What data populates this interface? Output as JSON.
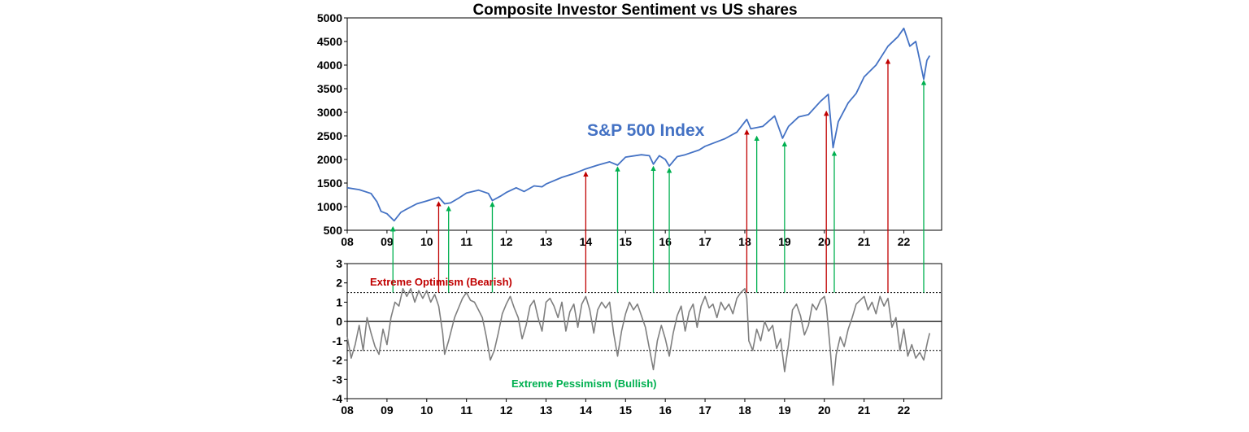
{
  "chart_data": [
    {
      "type": "line",
      "title": "Composite Investor Sentiment vs US shares",
      "series": [
        {
          "name": "S&P 500 Index",
          "color": "#4472C4",
          "points": [
            [
              2008.0,
              1400
            ],
            [
              2008.3,
              1360
            ],
            [
              2008.6,
              1280
            ],
            [
              2008.75,
              1100
            ],
            [
              2008.85,
              900
            ],
            [
              2009.0,
              850
            ],
            [
              2009.18,
              700
            ],
            [
              2009.35,
              880
            ],
            [
              2009.5,
              950
            ],
            [
              2009.75,
              1060
            ],
            [
              2010.0,
              1120
            ],
            [
              2010.3,
              1200
            ],
            [
              2010.45,
              1060
            ],
            [
              2010.6,
              1080
            ],
            [
              2010.8,
              1180
            ],
            [
              2011.0,
              1290
            ],
            [
              2011.3,
              1350
            ],
            [
              2011.55,
              1280
            ],
            [
              2011.65,
              1130
            ],
            [
              2011.85,
              1220
            ],
            [
              2012.0,
              1300
            ],
            [
              2012.25,
              1400
            ],
            [
              2012.45,
              1320
            ],
            [
              2012.7,
              1440
            ],
            [
              2012.9,
              1420
            ],
            [
              2013.0,
              1480
            ],
            [
              2013.4,
              1620
            ],
            [
              2013.7,
              1700
            ],
            [
              2014.0,
              1800
            ],
            [
              2014.3,
              1880
            ],
            [
              2014.6,
              1950
            ],
            [
              2014.8,
              1880
            ],
            [
              2015.0,
              2050
            ],
            [
              2015.4,
              2100
            ],
            [
              2015.6,
              2080
            ],
            [
              2015.7,
              1900
            ],
            [
              2015.85,
              2080
            ],
            [
              2016.0,
              2000
            ],
            [
              2016.1,
              1860
            ],
            [
              2016.3,
              2060
            ],
            [
              2016.5,
              2100
            ],
            [
              2016.85,
              2200
            ],
            [
              2017.0,
              2280
            ],
            [
              2017.5,
              2440
            ],
            [
              2017.8,
              2580
            ],
            [
              2018.05,
              2850
            ],
            [
              2018.15,
              2650
            ],
            [
              2018.45,
              2700
            ],
            [
              2018.75,
              2920
            ],
            [
              2018.95,
              2450
            ],
            [
              2019.1,
              2700
            ],
            [
              2019.35,
              2900
            ],
            [
              2019.6,
              2950
            ],
            [
              2019.9,
              3230
            ],
            [
              2020.1,
              3380
            ],
            [
              2020.22,
              2250
            ],
            [
              2020.35,
              2800
            ],
            [
              2020.6,
              3200
            ],
            [
              2020.8,
              3400
            ],
            [
              2021.0,
              3750
            ],
            [
              2021.3,
              4000
            ],
            [
              2021.6,
              4400
            ],
            [
              2021.85,
              4600
            ],
            [
              2022.0,
              4780
            ],
            [
              2022.15,
              4400
            ],
            [
              2022.3,
              4500
            ],
            [
              2022.45,
              3900
            ],
            [
              2022.5,
              3700
            ],
            [
              2022.58,
              4100
            ],
            [
              2022.65,
              4200
            ]
          ]
        },
        {
          "name": "",
          "color": "#7F7F7F",
          "points": [
            [
              2008.0,
              -0.8
            ],
            [
              2008.1,
              -1.9
            ],
            [
              2008.2,
              -1.2
            ],
            [
              2008.3,
              -0.2
            ],
            [
              2008.4,
              -1.5
            ],
            [
              2008.5,
              0.2
            ],
            [
              2008.6,
              -0.6
            ],
            [
              2008.7,
              -1.3
            ],
            [
              2008.8,
              -1.7
            ],
            [
              2008.9,
              -0.4
            ],
            [
              2009.0,
              -1.2
            ],
            [
              2009.1,
              0.2
            ],
            [
              2009.2,
              1.0
            ],
            [
              2009.3,
              0.8
            ],
            [
              2009.4,
              1.7
            ],
            [
              2009.5,
              1.3
            ],
            [
              2009.6,
              1.7
            ],
            [
              2009.7,
              1.0
            ],
            [
              2009.8,
              1.6
            ],
            [
              2009.9,
              1.2
            ],
            [
              2010.0,
              1.6
            ],
            [
              2010.1,
              1.0
            ],
            [
              2010.2,
              1.4
            ],
            [
              2010.3,
              0.8
            ],
            [
              2010.4,
              -0.6
            ],
            [
              2010.45,
              -1.7
            ],
            [
              2010.55,
              -1.0
            ],
            [
              2010.7,
              0.2
            ],
            [
              2010.8,
              0.7
            ],
            [
              2010.9,
              1.2
            ],
            [
              2011.0,
              1.5
            ],
            [
              2011.1,
              1.1
            ],
            [
              2011.2,
              1.0
            ],
            [
              2011.3,
              0.6
            ],
            [
              2011.4,
              0.2
            ],
            [
              2011.5,
              -0.8
            ],
            [
              2011.6,
              -2.0
            ],
            [
              2011.7,
              -1.5
            ],
            [
              2011.8,
              -0.6
            ],
            [
              2011.9,
              0.4
            ],
            [
              2012.0,
              0.9
            ],
            [
              2012.1,
              1.3
            ],
            [
              2012.2,
              0.7
            ],
            [
              2012.3,
              0.2
            ],
            [
              2012.4,
              -0.9
            ],
            [
              2012.5,
              -0.2
            ],
            [
              2012.6,
              0.8
            ],
            [
              2012.7,
              1.1
            ],
            [
              2012.8,
              0.2
            ],
            [
              2012.9,
              -0.5
            ],
            [
              2013.0,
              1.0
            ],
            [
              2013.1,
              1.2
            ],
            [
              2013.2,
              0.8
            ],
            [
              2013.3,
              0.2
            ],
            [
              2013.4,
              1.0
            ],
            [
              2013.5,
              -0.5
            ],
            [
              2013.6,
              0.5
            ],
            [
              2013.7,
              0.9
            ],
            [
              2013.8,
              -0.3
            ],
            [
              2013.9,
              0.9
            ],
            [
              2014.0,
              1.3
            ],
            [
              2014.1,
              0.6
            ],
            [
              2014.2,
              -0.6
            ],
            [
              2014.3,
              0.6
            ],
            [
              2014.4,
              1.0
            ],
            [
              2014.5,
              0.7
            ],
            [
              2014.6,
              1.0
            ],
            [
              2014.7,
              -0.6
            ],
            [
              2014.8,
              -1.8
            ],
            [
              2014.9,
              -0.5
            ],
            [
              2015.0,
              0.4
            ],
            [
              2015.1,
              1.0
            ],
            [
              2015.2,
              0.6
            ],
            [
              2015.3,
              0.9
            ],
            [
              2015.4,
              0.3
            ],
            [
              2015.5,
              -0.3
            ],
            [
              2015.6,
              -1.4
            ],
            [
              2015.7,
              -2.5
            ],
            [
              2015.8,
              -1.0
            ],
            [
              2015.9,
              -0.2
            ],
            [
              2016.0,
              -0.9
            ],
            [
              2016.1,
              -1.8
            ],
            [
              2016.2,
              -0.6
            ],
            [
              2016.3,
              0.3
            ],
            [
              2016.4,
              0.8
            ],
            [
              2016.5,
              -0.5
            ],
            [
              2016.6,
              0.5
            ],
            [
              2016.7,
              0.9
            ],
            [
              2016.8,
              -0.3
            ],
            [
              2016.9,
              0.8
            ],
            [
              2017.0,
              1.3
            ],
            [
              2017.1,
              0.7
            ],
            [
              2017.2,
              0.9
            ],
            [
              2017.3,
              0.2
            ],
            [
              2017.4,
              1.0
            ],
            [
              2017.5,
              0.6
            ],
            [
              2017.6,
              0.9
            ],
            [
              2017.7,
              0.4
            ],
            [
              2017.8,
              1.2
            ],
            [
              2017.9,
              1.5
            ],
            [
              2018.0,
              1.7
            ],
            [
              2018.05,
              1.2
            ],
            [
              2018.1,
              -1.0
            ],
            [
              2018.2,
              -1.5
            ],
            [
              2018.3,
              -0.4
            ],
            [
              2018.4,
              -1.0
            ],
            [
              2018.5,
              0.0
            ],
            [
              2018.6,
              -0.5
            ],
            [
              2018.7,
              -0.2
            ],
            [
              2018.8,
              -1.4
            ],
            [
              2018.9,
              -0.9
            ],
            [
              2019.0,
              -2.6
            ],
            [
              2019.1,
              -1.2
            ],
            [
              2019.2,
              0.6
            ],
            [
              2019.3,
              0.9
            ],
            [
              2019.4,
              0.3
            ],
            [
              2019.5,
              -0.7
            ],
            [
              2019.6,
              -0.2
            ],
            [
              2019.7,
              0.9
            ],
            [
              2019.8,
              0.6
            ],
            [
              2019.9,
              1.1
            ],
            [
              2020.0,
              1.3
            ],
            [
              2020.05,
              0.8
            ],
            [
              2020.15,
              -1.5
            ],
            [
              2020.22,
              -3.3
            ],
            [
              2020.3,
              -1.7
            ],
            [
              2020.4,
              -0.8
            ],
            [
              2020.5,
              -1.3
            ],
            [
              2020.6,
              -0.4
            ],
            [
              2020.7,
              0.2
            ],
            [
              2020.8,
              0.9
            ],
            [
              2020.9,
              1.1
            ],
            [
              2021.0,
              1.3
            ],
            [
              2021.1,
              0.6
            ],
            [
              2021.2,
              1.0
            ],
            [
              2021.3,
              0.4
            ],
            [
              2021.4,
              1.3
            ],
            [
              2021.5,
              0.8
            ],
            [
              2021.6,
              1.2
            ],
            [
              2021.7,
              -0.3
            ],
            [
              2021.8,
              0.2
            ],
            [
              2021.9,
              -1.5
            ],
            [
              2022.0,
              -0.4
            ],
            [
              2022.1,
              -1.8
            ],
            [
              2022.2,
              -1.2
            ],
            [
              2022.3,
              -1.9
            ],
            [
              2022.4,
              -1.6
            ],
            [
              2022.5,
              -2.0
            ],
            [
              2022.55,
              -1.5
            ],
            [
              2022.6,
              -1.0
            ],
            [
              2022.65,
              -0.6
            ]
          ]
        }
      ],
      "xaxis_range": [
        2008,
        2022.95
      ],
      "xtick_labels": [
        "08",
        "09",
        "10",
        "11",
        "12",
        "13",
        "14",
        "15",
        "16",
        "17",
        "18",
        "19",
        "20",
        "21",
        "22"
      ],
      "yaxis_top": {
        "ylim": [
          500,
          5000
        ],
        "ticks": [
          500,
          1000,
          1500,
          2000,
          2500,
          3000,
          3500,
          4000,
          4500,
          5000
        ]
      },
      "yaxis_bottom": {
        "ylim": [
          -4,
          3
        ],
        "ticks": [
          -4,
          -3,
          -2,
          -1,
          0,
          1,
          2,
          3
        ]
      },
      "thresholds": [
        1.5,
        -1.5
      ],
      "annotations": {
        "sp500_label": "S&P 500 Index",
        "optimism_label": "Extreme Optimism (Bearish)",
        "pessimism_label": "Extreme Pessimism (Bullish)"
      },
      "signal_arrows": [
        {
          "x": 2009.15,
          "from_sentiment": 1.5,
          "to_index": 600,
          "kind": "bullish"
        },
        {
          "x": 2010.3,
          "from_sentiment": 1.5,
          "to_index": 1130,
          "kind": "bearish"
        },
        {
          "x": 2010.55,
          "from_sentiment": 1.5,
          "to_index": 1030,
          "kind": "bullish"
        },
        {
          "x": 2011.65,
          "from_sentiment": 1.5,
          "to_index": 1120,
          "kind": "bullish"
        },
        {
          "x": 2014.0,
          "from_sentiment": 1.5,
          "to_index": 1760,
          "kind": "bearish"
        },
        {
          "x": 2014.8,
          "from_sentiment": 1.5,
          "to_index": 1870,
          "kind": "bullish"
        },
        {
          "x": 2015.7,
          "from_sentiment": 1.5,
          "to_index": 1880,
          "kind": "bullish"
        },
        {
          "x": 2016.1,
          "from_sentiment": 1.5,
          "to_index": 1840,
          "kind": "bullish"
        },
        {
          "x": 2018.05,
          "from_sentiment": 1.5,
          "to_index": 2650,
          "kind": "bearish"
        },
        {
          "x": 2018.3,
          "from_sentiment": 1.5,
          "to_index": 2520,
          "kind": "bullish"
        },
        {
          "x": 2019.0,
          "from_sentiment": 1.5,
          "to_index": 2400,
          "kind": "bullish"
        },
        {
          "x": 2020.05,
          "from_sentiment": 1.5,
          "to_index": 3050,
          "kind": "bearish"
        },
        {
          "x": 2020.25,
          "from_sentiment": 1.5,
          "to_index": 2200,
          "kind": "bullish"
        },
        {
          "x": 2021.6,
          "from_sentiment": 1.5,
          "to_index": 4150,
          "kind": "bearish"
        },
        {
          "x": 2022.5,
          "from_sentiment": 1.5,
          "to_index": 3700,
          "kind": "bullish"
        }
      ],
      "colors": {
        "sp500": "#4472C4",
        "sentiment": "#7F7F7F",
        "bearish_arrow": "#C00000",
        "bullish_arrow": "#00B050",
        "optimism_text": "#C00000",
        "pessimism_text": "#00B050"
      }
    }
  ]
}
